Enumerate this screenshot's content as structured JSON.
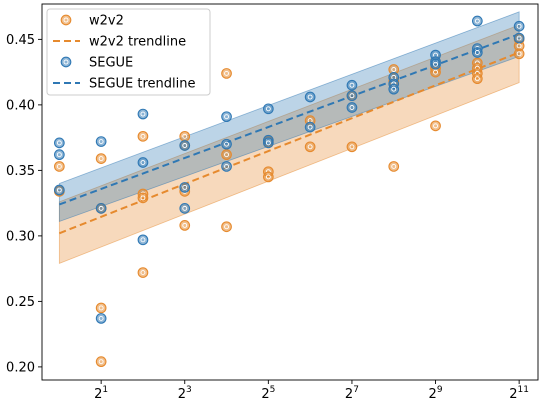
{
  "chart_data": {
    "type": "scatter",
    "x_scale": "log2",
    "x_ticks": [
      {
        "value": 2,
        "base": "2",
        "exp": "1"
      },
      {
        "value": 8,
        "base": "2",
        "exp": "3"
      },
      {
        "value": 32,
        "base": "2",
        "exp": "5"
      },
      {
        "value": 128,
        "base": "2",
        "exp": "7"
      },
      {
        "value": 512,
        "base": "2",
        "exp": "9"
      },
      {
        "value": 2048,
        "base": "2",
        "exp": "11"
      }
    ],
    "y_ticks": [
      "0.20",
      "0.25",
      "0.30",
      "0.35",
      "0.40",
      "0.45"
    ],
    "xlim": [
      0.75,
      2800
    ],
    "ylim": [
      0.19,
      0.477
    ],
    "grid": false,
    "legend_position": "top-left",
    "colors": {
      "w2v2": "#e68a2e",
      "segue": "#2f78b4"
    },
    "series": [
      {
        "name": "w2v2",
        "kind": "scatter",
        "points": [
          [
            1,
            0.353
          ],
          [
            1,
            0.334
          ],
          [
            2,
            0.359
          ],
          [
            2,
            0.321
          ],
          [
            2,
            0.245
          ],
          [
            2,
            0.204
          ],
          [
            4,
            0.376
          ],
          [
            4,
            0.332
          ],
          [
            4,
            0.329
          ],
          [
            4,
            0.272
          ],
          [
            8,
            0.376
          ],
          [
            8,
            0.369
          ],
          [
            8,
            0.334
          ],
          [
            8,
            0.308
          ],
          [
            16,
            0.424
          ],
          [
            16,
            0.362
          ],
          [
            16,
            0.307
          ],
          [
            32,
            0.372
          ],
          [
            32,
            0.349
          ],
          [
            32,
            0.345
          ],
          [
            64,
            0.388
          ],
          [
            64,
            0.368
          ],
          [
            128,
            0.407
          ],
          [
            128,
            0.368
          ],
          [
            256,
            0.427
          ],
          [
            256,
            0.418
          ],
          [
            256,
            0.353
          ],
          [
            512,
            0.428
          ],
          [
            512,
            0.425
          ],
          [
            512,
            0.384
          ],
          [
            1024,
            0.432
          ],
          [
            1024,
            0.428
          ],
          [
            1024,
            0.424
          ],
          [
            1024,
            0.42
          ],
          [
            2048,
            0.45
          ],
          [
            2048,
            0.445
          ],
          [
            2048,
            0.439
          ]
        ]
      },
      {
        "name": "w2v2 trendline",
        "kind": "trend",
        "x": [
          1,
          2048
        ],
        "y": [
          0.302,
          0.44
        ],
        "band_lower": [
          0.279,
          0.417
        ],
        "band_upper": [
          0.326,
          0.461
        ]
      },
      {
        "name": "SEGUE",
        "kind": "scatter",
        "points": [
          [
            1,
            0.371
          ],
          [
            1,
            0.362
          ],
          [
            1,
            0.335
          ],
          [
            2,
            0.372
          ],
          [
            2,
            0.321
          ],
          [
            2,
            0.237
          ],
          [
            4,
            0.393
          ],
          [
            4,
            0.356
          ],
          [
            4,
            0.297
          ],
          [
            8,
            0.369
          ],
          [
            8,
            0.337
          ],
          [
            8,
            0.321
          ],
          [
            16,
            0.391
          ],
          [
            16,
            0.37
          ],
          [
            16,
            0.353
          ],
          [
            32,
            0.397
          ],
          [
            32,
            0.373
          ],
          [
            32,
            0.371
          ],
          [
            64,
            0.406
          ],
          [
            64,
            0.383
          ],
          [
            128,
            0.415
          ],
          [
            128,
            0.407
          ],
          [
            128,
            0.398
          ],
          [
            256,
            0.421
          ],
          [
            256,
            0.416
          ],
          [
            256,
            0.412
          ],
          [
            512,
            0.438
          ],
          [
            512,
            0.433
          ],
          [
            512,
            0.431
          ],
          [
            1024,
            0.464
          ],
          [
            1024,
            0.443
          ],
          [
            1024,
            0.44
          ],
          [
            2048,
            0.46
          ],
          [
            2048,
            0.451
          ]
        ]
      },
      {
        "name": "SEGUE trendline",
        "kind": "trend",
        "x": [
          1,
          2048
        ],
        "y": [
          0.324,
          0.454
        ],
        "band_lower": [
          0.311,
          0.437
        ],
        "band_upper": [
          0.34,
          0.471
        ]
      }
    ]
  }
}
